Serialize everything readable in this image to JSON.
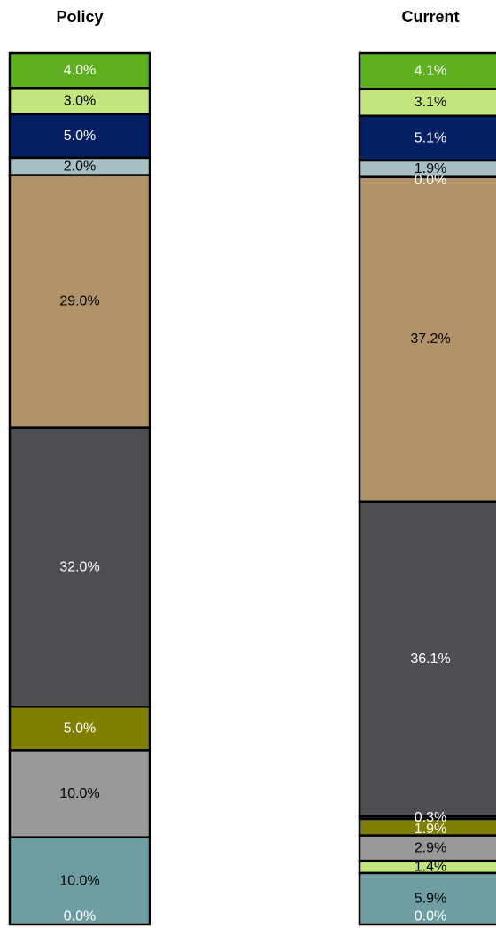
{
  "chart_data": {
    "type": "bar",
    "stacked": true,
    "normalized": true,
    "categories": [
      "Policy",
      "Current"
    ],
    "series": [
      {
        "color": "#5fb01e",
        "label_color": "#ffffff",
        "values": [
          4.0,
          4.1
        ],
        "labels": [
          "4.0%",
          "4.1%"
        ]
      },
      {
        "color": "#c2e57e",
        "label_color": "#000000",
        "values": [
          3.0,
          3.1
        ],
        "labels": [
          "3.0%",
          "3.1%"
        ]
      },
      {
        "color": "#022063",
        "label_color": "#ffffff",
        "values": [
          5.0,
          5.1
        ],
        "labels": [
          "5.0%",
          "5.1%"
        ]
      },
      {
        "color": "#a7c0c6",
        "label_color": "#000000",
        "values": [
          2.0,
          1.9
        ],
        "labels": [
          "2.0%",
          "1.9%"
        ]
      },
      {
        "color": "#ffffff",
        "label_color": "#ffffff",
        "values": [
          0.0,
          0.0
        ],
        "labels": [
          "",
          "0.0%"
        ]
      },
      {
        "color": "#b29369",
        "label_color": "#000000",
        "values": [
          29.0,
          37.2
        ],
        "labels": [
          "29.0%",
          "37.2%"
        ]
      },
      {
        "color": "#4d4e52",
        "label_color": "#ffffff",
        "values": [
          32.0,
          36.1
        ],
        "labels": [
          "32.0%",
          "36.1%"
        ]
      },
      {
        "color": "#4d4e52",
        "label_color": "#ffffff",
        "values": [
          0.0,
          0.3
        ],
        "labels": [
          "",
          "0.3%"
        ]
      },
      {
        "color": "#7f7f00",
        "label_color": "#ffffff",
        "values": [
          5.0,
          1.9
        ],
        "labels": [
          "5.0%",
          "1.9%"
        ]
      },
      {
        "color": "#989898",
        "label_color": "#000000",
        "values": [
          10.0,
          2.9
        ],
        "labels": [
          "10.0%",
          "2.9%"
        ]
      },
      {
        "color": "#c2e57e",
        "label_color": "#000000",
        "values": [
          0.0,
          1.4
        ],
        "labels": [
          "",
          "1.4%"
        ]
      },
      {
        "color": "#6e9ea1",
        "label_color": "#000000",
        "values": [
          10.0,
          5.9
        ],
        "labels": [
          "10.0%",
          "5.9%"
        ]
      },
      {
        "color": "#6e9ea1",
        "label_color": "#ffffff",
        "values": [
          0.0,
          0.0
        ],
        "labels": [
          "0.0%",
          "0.0%"
        ]
      }
    ],
    "ylim": [
      0,
      100
    ],
    "grid": false,
    "legend": "none"
  }
}
